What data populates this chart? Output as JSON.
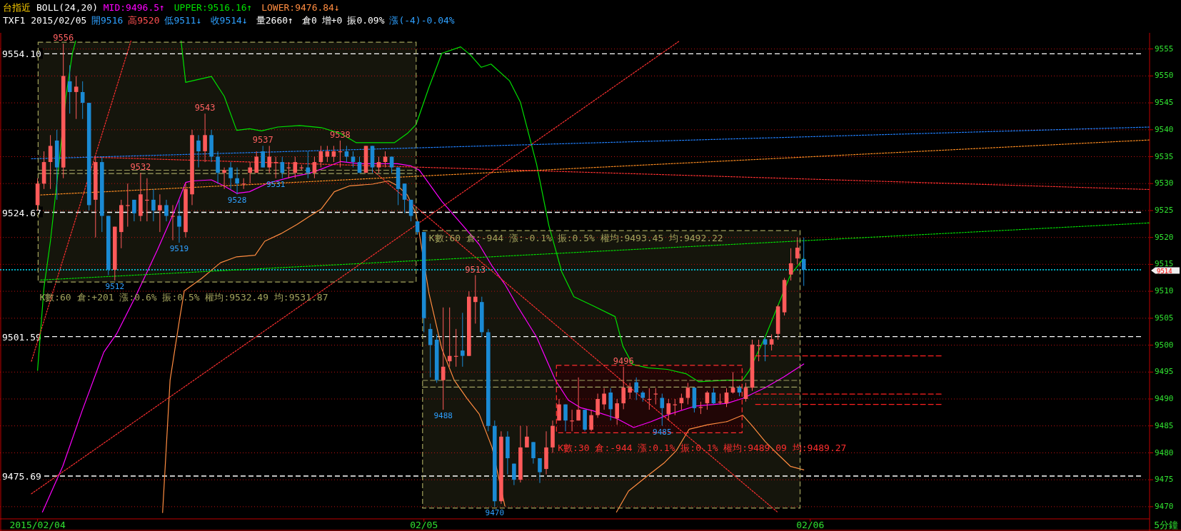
{
  "chart_data": {
    "type": "candlestick",
    "title": "台指近",
    "subtitle": "BOLL(24,20)",
    "xlabel": "5分鐘",
    "x": [
      "2015-02-04T00:00",
      "2015-02-04T00:24",
      "2015-02-04T00:48",
      "2015-02-04T01:12",
      "2015-02-04T01:36",
      "2015-02-04T02:00",
      "2015-02-04T02:24",
      "2015-02-04T02:48",
      "2015-02-04T03:12",
      "2015-02-04T03:36",
      "2015-02-04T04:00",
      "2015-02-04T04:24",
      "2015-02-04T04:48",
      "2015-02-04T05:12",
      "2015-02-04T05:36",
      "2015-02-04T06:00",
      "2015-02-04T06:24",
      "2015-02-04T06:48",
      "2015-02-04T07:12",
      "2015-02-04T07:36",
      "2015-02-04T08:00",
      "2015-02-04T08:24",
      "2015-02-04T08:48",
      "2015-02-04T09:12",
      "2015-02-04T09:36",
      "2015-02-04T10:00",
      "2015-02-04T10:24",
      "2015-02-04T10:48",
      "2015-02-04T11:12",
      "2015-02-04T11:36",
      "2015-02-04T12:00",
      "2015-02-04T12:24",
      "2015-02-04T12:48",
      "2015-02-04T13:12",
      "2015-02-04T13:36",
      "2015-02-04T14:00",
      "2015-02-04T14:24",
      "2015-02-04T14:48",
      "2015-02-04T15:12",
      "2015-02-04T15:36",
      "2015-02-04T16:00",
      "2015-02-04T16:24",
      "2015-02-04T16:48",
      "2015-02-04T17:12",
      "2015-02-04T17:36",
      "2015-02-04T18:00",
      "2015-02-04T18:24",
      "2015-02-04T18:48",
      "2015-02-04T19:12",
      "2015-02-04T19:36",
      "2015-02-04T20:00",
      "2015-02-04T20:24",
      "2015-02-04T20:48",
      "2015-02-04T21:12",
      "2015-02-04T21:36",
      "2015-02-04T22:00",
      "2015-02-04T22:24",
      "2015-02-04T22:48",
      "2015-02-04T23:12",
      "2015-02-04T23:36",
      "2015-02-05T00:00",
      "2015-02-05T00:24",
      "2015-02-05T00:48",
      "2015-02-05T01:12",
      "2015-02-05T01:36",
      "2015-02-05T02:00",
      "2015-02-05T02:24",
      "2015-02-05T02:48",
      "2015-02-05T03:12",
      "2015-02-05T03:36",
      "2015-02-05T04:00",
      "2015-02-05T04:24",
      "2015-02-05T04:48",
      "2015-02-05T05:12",
      "2015-02-05T05:36",
      "2015-02-05T06:00",
      "2015-02-05T06:24",
      "2015-02-05T06:48",
      "2015-02-05T07:12",
      "2015-02-05T07:36",
      "2015-02-05T08:00",
      "2015-02-05T08:24",
      "2015-02-05T08:48",
      "2015-02-05T09:12",
      "2015-02-05T09:36",
      "2015-02-05T10:00",
      "2015-02-05T10:24",
      "2015-02-05T10:48",
      "2015-02-05T11:12",
      "2015-02-05T11:36",
      "2015-02-05T12:00",
      "2015-02-05T12:24",
      "2015-02-05T12:48",
      "2015-02-05T13:12",
      "2015-02-05T13:36",
      "2015-02-05T14:00",
      "2015-02-05T14:24",
      "2015-02-05T14:48",
      "2015-02-05T15:12",
      "2015-02-05T15:36",
      "2015-02-05T16:00",
      "2015-02-05T16:24",
      "2015-02-05T16:48",
      "2015-02-05T17:12",
      "2015-02-05T17:36",
      "2015-02-05T18:00",
      "2015-02-05T18:24",
      "2015-02-05T18:48",
      "2015-02-05T19:12",
      "2015-02-05T19:36",
      "2015-02-05T20:00",
      "2015-02-05T20:24",
      "2015-02-05T20:48",
      "2015-02-05T21:12",
      "2015-02-05T21:36",
      "2015-02-05T22:00",
      "2015-02-05T22:24",
      "2015-02-05T22:48",
      "2015-02-05T23:12",
      "2015-02-05T23:36"
    ],
    "ohlc": [
      [
        9526,
        9531,
        9525,
        9530
      ],
      [
        9530,
        9536,
        9529,
        9534
      ],
      [
        9534,
        9539,
        9529,
        9537
      ],
      [
        9538,
        9540,
        9527,
        9533
      ],
      [
        9533,
        9556,
        9531,
        9550
      ],
      [
        9549,
        9552,
        9543,
        9547
      ],
      [
        9547,
        9550,
        9542,
        9548
      ],
      [
        9547,
        9549,
        9542,
        9545
      ],
      [
        9545,
        9545,
        9525,
        9526
      ],
      [
        9527,
        9535,
        9520,
        9534
      ],
      [
        9534,
        9535,
        9521,
        9524
      ],
      [
        9524,
        9524,
        9513,
        9514
      ],
      [
        9514,
        9522,
        9512,
        9522
      ],
      [
        9521,
        9527,
        9518,
        9526
      ],
      [
        9526,
        9530,
        9522,
        9526
      ],
      [
        9527,
        9527,
        9523,
        9524.5
      ],
      [
        9524,
        9532,
        9523,
        9528
      ],
      [
        9527,
        9531,
        9523,
        9527
      ],
      [
        9527,
        9529,
        9523,
        9525
      ],
      [
        9525,
        9528,
        9521,
        9526
      ],
      [
        9526,
        9527,
        9523,
        9524
      ],
      [
        9524,
        9526,
        9519.5,
        9524
      ],
      [
        9524,
        9527,
        9519,
        9522
      ],
      [
        9521,
        9530,
        9520,
        9529
      ],
      [
        9528,
        9540,
        9526,
        9539
      ],
      [
        9538,
        9539,
        9533,
        9536
      ],
      [
        9536,
        9543,
        9534,
        9539
      ],
      [
        9539,
        9540,
        9534,
        9535
      ],
      [
        9535,
        9536,
        9530,
        9532
      ],
      [
        9532,
        9533,
        9529,
        9532.5
      ],
      [
        9533,
        9534,
        9529,
        9531
      ],
      [
        9531,
        9533,
        9528,
        9530
      ],
      [
        9530,
        9531,
        9529,
        9530
      ],
      [
        9532,
        9534,
        9530,
        9533
      ],
      [
        9532,
        9536,
        9532,
        9535
      ],
      [
        9536,
        9537,
        9533,
        9533
      ],
      [
        9533,
        9537,
        9532,
        9535
      ],
      [
        9534,
        9535,
        9531,
        9534
      ],
      [
        9534,
        9535,
        9531,
        9532
      ],
      [
        9533,
        9534,
        9531,
        9533
      ],
      [
        9532,
        9535,
        9531,
        9534
      ],
      [
        9533,
        9533.5,
        9532.5,
        9533
      ],
      [
        9533,
        9536,
        9531,
        9532
      ],
      [
        9532,
        9535,
        9531,
        9534
      ],
      [
        9534,
        9537,
        9533,
        9536
      ],
      [
        9535,
        9537,
        9534,
        9536
      ],
      [
        9535,
        9537,
        9534,
        9536
      ],
      [
        9536,
        9538,
        9533,
        9536
      ],
      [
        9536,
        9537,
        9534,
        9535
      ],
      [
        9535,
        9536,
        9533,
        9534
      ],
      [
        9534,
        9535,
        9532,
        9532
      ],
      [
        9532,
        9537,
        9532,
        9537
      ],
      [
        9537,
        9537,
        9532,
        9533
      ],
      [
        9533,
        9535,
        9532,
        9534
      ],
      [
        9534,
        9536,
        9533,
        9535
      ],
      [
        9535,
        9535,
        9532,
        9533
      ],
      [
        9533,
        9533,
        9526,
        9529
      ],
      [
        9530,
        9530,
        9524.5,
        9527
      ],
      [
        9527,
        9527,
        9523,
        9524
      ],
      [
        9523,
        9523,
        9520.5,
        9521
      ],
      [
        9521,
        9521,
        9502.4,
        9505
      ],
      [
        9503,
        9504,
        9494,
        9500
      ],
      [
        9501,
        9502,
        9493,
        9493.5
      ],
      [
        9493.5,
        9507,
        9488,
        9496
      ],
      [
        9497,
        9507,
        9496,
        9498
      ],
      [
        9498,
        9503,
        9496,
        9498
      ],
      [
        9499,
        9506,
        9496,
        9498
      ],
      [
        9498,
        9510,
        9498,
        9509
      ],
      [
        9508,
        9513,
        9504,
        9509
      ],
      [
        9508,
        9509,
        9501.5,
        9502.4
      ],
      [
        9502.4,
        9503,
        9484,
        9485
      ],
      [
        9485,
        9486,
        9470,
        9471
      ],
      [
        9471,
        9484,
        9470.5,
        9483
      ],
      [
        9483,
        9484,
        9476,
        9479
      ],
      [
        9478,
        9478,
        9474,
        9475
      ],
      [
        9475,
        9485,
        9474.5,
        9481
      ],
      [
        9481,
        9485,
        9481,
        9483
      ],
      [
        9482,
        9482,
        9478,
        9479
      ],
      [
        9479,
        9479,
        9474.4,
        9476.4
      ],
      [
        9477,
        9484,
        9476,
        9481
      ],
      [
        9481,
        9486,
        9480,
        9485
      ],
      [
        9486,
        9490,
        9486,
        9489
      ],
      [
        9489,
        9489,
        9484,
        9486
      ],
      [
        9486,
        9488,
        9484,
        9486
      ],
      [
        9486,
        9494,
        9486,
        9488
      ],
      [
        9488,
        9488,
        9484,
        9484.3
      ],
      [
        9484.3,
        9488,
        9484,
        9487
      ],
      [
        9487,
        9491,
        9486.5,
        9490
      ],
      [
        9489,
        9492,
        9488,
        9491
      ],
      [
        9491.2,
        9492,
        9486,
        9488.1
      ],
      [
        9486.4,
        9490,
        9485.2,
        9489.2
      ],
      [
        9489.2,
        9496,
        9488.1,
        9492.1
      ],
      [
        9491.2,
        9493,
        9490,
        9492.1
      ],
      [
        9493.1,
        9494,
        9489.8,
        9491.2
      ],
      [
        9491.2,
        9491.5,
        9489.5,
        9490.2
      ],
      [
        9490,
        9492,
        9488,
        9490
      ],
      [
        9491,
        9492,
        9489,
        9491
      ],
      [
        9490.2,
        9491,
        9485,
        9488.3
      ],
      [
        9487.2,
        9490,
        9486,
        9489.2
      ],
      [
        9489,
        9490,
        9487,
        9489
      ],
      [
        9489.2,
        9491,
        9488,
        9490.2
      ],
      [
        9490.2,
        9493,
        9489,
        9492.1
      ],
      [
        9492.1,
        9492.1,
        9487.5,
        9488.3
      ],
      [
        9488.5,
        9489.5,
        9487.2,
        9488.5
      ],
      [
        9489.2,
        9491.5,
        9488,
        9491.2
      ],
      [
        9491.2,
        9492,
        9489,
        9489.2
      ],
      [
        9489.5,
        9491,
        9489,
        9489.5
      ],
      [
        9489.2,
        9492,
        9488.5,
        9491.2
      ],
      [
        9491.2,
        9495,
        9491,
        9492.1
      ],
      [
        9492.1,
        9492.5,
        9490.5,
        9491.2
      ],
      [
        9490,
        9493,
        9489.5,
        9492.1
      ],
      [
        9492.1,
        9501,
        9491.5,
        9500.1
      ],
      [
        9500,
        9501,
        9497,
        9500
      ],
      [
        9501.1,
        9501.5,
        9497,
        9500.1
      ],
      [
        9500.1,
        9502,
        9499,
        9501.1
      ],
      [
        9502.1,
        9507.5,
        9501,
        9507.2
      ],
      [
        9506.1,
        9512.5,
        9505.5,
        9512.1
      ],
      [
        9513.1,
        9518,
        9512,
        9515.2
      ],
      [
        9516.1,
        9520,
        9515,
        9518.1
      ],
      [
        9516,
        9520,
        9511,
        9514
      ]
    ],
    "colors": [
      "#ff5a5a",
      "#ff5a5a",
      "#ff5a5a",
      "#1a8ad4",
      "#ff5a5a",
      "#1a8ad4",
      "#ff5a5a",
      "#1a8ad4",
      "#1a8ad4",
      "#ff5a5a",
      "#1a8ad4",
      "#1a8ad4",
      "#ff5a5a",
      "#ff5a5a",
      "#ff5a5a",
      "#1a8ad4",
      "#ff5a5a",
      "#ff5a5a",
      "#1a8ad4",
      "#ff5a5a",
      "#1a8ad4",
      "#ff5a5a",
      "#1a8ad4",
      "#ff5a5a",
      "#ff5a5a",
      "#1a8ad4",
      "#ff5a5a",
      "#1a8ad4",
      "#1a8ad4",
      "#ff5a5a",
      "#1a8ad4",
      "#1a8ad4",
      "#ff5a5a",
      "#ff5a5a",
      "#ff5a5a",
      "#1a8ad4",
      "#ff5a5a",
      "#ff5a5a",
      "#1a8ad4",
      "#ff5a5a",
      "#ff5a5a",
      "#ff5a5a",
      "#1a8ad4",
      "#ff5a5a",
      "#ff5a5a",
      "#ff5a5a",
      "#ff5a5a",
      "#ff5a5a",
      "#1a8ad4",
      "#1a8ad4",
      "#1a8ad4",
      "#ff5a5a",
      "#1a8ad4",
      "#ff5a5a",
      "#ff5a5a",
      "#1a8ad4",
      "#1a8ad4",
      "#1a8ad4",
      "#1a8ad4",
      "#1a8ad4",
      "#1a8ad4",
      "#1a8ad4",
      "#1a8ad4",
      "#ff5a5a",
      "#ff5a5a",
      "#ff5a5a",
      "#1a8ad4",
      "#ff5a5a",
      "#ff5a5a",
      "#1a8ad4",
      "#1a8ad4",
      "#1a8ad4",
      "#ff5a5a",
      "#1a8ad4",
      "#1a8ad4",
      "#ff5a5a",
      "#ff5a5a",
      "#1a8ad4",
      "#1a8ad4",
      "#ff5a5a",
      "#ff5a5a",
      "#ff5a5a",
      "#1a8ad4",
      "#ff5a5a",
      "#ff5a5a",
      "#1a8ad4",
      "#ff5a5a",
      "#ff5a5a",
      "#ff5a5a",
      "#1a8ad4",
      "#ff5a5a",
      "#ff5a5a",
      "#ff5a5a",
      "#1a8ad4",
      "#1a8ad4",
      "#ff5a5a",
      "#ff5a5a",
      "#1a8ad4",
      "#ff5a5a",
      "#ff5a5a",
      "#ff5a5a",
      "#ff5a5a",
      "#1a8ad4",
      "#ff5a5a",
      "#ff5a5a",
      "#1a8ad4",
      "#ff5a5a",
      "#ff5a5a",
      "#ff5a5a",
      "#1a8ad4",
      "#ff5a5a",
      "#ff5a5a",
      "#ff5a5a",
      "#1a8ad4",
      "#ff5a5a",
      "#ff5a5a",
      "#ff5a5a",
      "#ff5a5a",
      "#ff5a5a",
      "#1a8ad4"
    ],
    "series": [
      {
        "name": "MID:9496.5↑",
        "type": "line",
        "color": "#ff00ff",
        "line_style": "solid",
        "x": [
          "2015-02-04T00:18",
          "2015-02-04T01:34",
          "2015-02-04T02:46",
          "2015-02-04T04:07",
          "2015-02-04T04:55",
          "2015-02-04T06:05",
          "2015-02-04T07:26",
          "2015-02-04T08:26",
          "2015-02-04T09:12",
          "2015-02-04T09:36",
          "2015-02-04T10:48",
          "2015-02-04T11:34",
          "2015-02-04T12:22",
          "2015-02-04T13:10",
          "2015-02-04T14:19",
          "2015-02-04T15:53",
          "2015-02-04T16:53",
          "2015-02-04T17:38",
          "2015-02-04T18:50",
          "2015-02-04T20:00",
          "2015-02-04T20:48",
          "2015-02-04T22:22",
          "2015-02-04T23:10",
          "2015-02-04T23:43",
          "2015-02-05T01:07",
          "2015-02-05T02:17",
          "2015-02-05T03:26",
          "2015-02-05T04:14",
          "2015-02-05T05:02",
          "2015-02-05T05:48",
          "2015-02-05T07:00",
          "2015-02-05T08:10",
          "2015-02-05T08:58",
          "2015-02-05T09:43",
          "2015-02-05T10:31",
          "2015-02-05T11:58",
          "2015-02-05T13:02",
          "2015-02-05T14:07",
          "2015-02-05T15:17",
          "2015-02-05T16:53",
          "2015-02-05T18:50",
          "2015-02-05T19:48",
          "2015-02-05T21:12",
          "2015-02-05T22:22",
          "2015-02-05T23:36"
        ],
        "values": [
          9469,
          9477.5,
          9487.8,
          9498.7,
          9502.1,
          9509,
          9517.6,
          9524.4,
          9530.2,
          9530.5,
          9530.7,
          9529.6,
          9528.2,
          9528.5,
          9530.1,
          9531.3,
          9531.9,
          9532.7,
          9534.1,
          9533.7,
          9533.7,
          9533.7,
          9533.3,
          9532.5,
          9526.7,
          9522.7,
          9518.7,
          9514.7,
          9511.3,
          9507.3,
          9501.5,
          9493.5,
          9489.8,
          9488.4,
          9487.8,
          9486.4,
          9484.7,
          9485.8,
          9487.2,
          9488.7,
          9489.2,
          9490.1,
          9492.1,
          9494.1,
          9496.5
        ]
      },
      {
        "name": "UPPER:9516.16↑",
        "type": "line",
        "color": "#00e000",
        "line_style": "solid",
        "x": [
          "2015-02-04T00:00",
          "2015-02-04T00:24",
          "2015-02-04T00:48",
          "2015-02-04T01:22",
          "2015-02-04T01:46",
          "2015-02-04T02:10",
          "2015-02-04T02:22",
          null,
          "2015-02-04T08:55",
          "2015-02-04T09:12",
          "2015-02-04T10:48",
          "2015-02-04T11:36",
          "2015-02-04T12:22",
          "2015-02-04T13:10",
          "2015-02-04T13:55",
          "2015-02-04T14:55",
          "2015-02-04T16:17",
          "2015-02-04T17:38",
          "2015-02-04T18:50",
          "2015-02-04T19:48",
          "2015-02-04T20:48",
          "2015-02-04T22:10",
          "2015-02-04T22:58",
          "2015-02-04T23:31",
          "2015-02-05T00:19",
          "2015-02-05T01:07",
          "2015-02-05T02:17",
          "2015-02-05T02:53",
          "2015-02-05T03:34",
          "2015-02-05T04:10",
          "2015-02-05T05:19",
          "2015-02-05T06:00",
          "2015-02-05T07:00",
          "2015-02-05T07:46",
          "2015-02-05T08:34",
          "2015-02-05T09:19",
          "2015-02-05T10:31",
          "2015-02-05T11:53",
          "2015-02-05T12:22",
          "2015-02-05T12:58",
          "2015-02-05T13:55",
          "2015-02-05T15:07",
          "2015-02-05T16:17",
          "2015-02-05T17:05",
          "2015-02-05T18:50",
          "2015-02-05T19:48",
          "2015-02-05T20:12",
          "2015-02-05T21:12",
          "2015-02-05T22:46",
          "2015-02-05T23:36"
        ],
        "values": [
          9495.3,
          9510.7,
          9519.3,
          9534.7,
          9546.2,
          9554.2,
          9556.5,
          null,
          9556.5,
          9548.8,
          9549.9,
          9546.2,
          9539.9,
          9540.2,
          9539.8,
          9540.5,
          9540.8,
          9540.4,
          9539.3,
          9537.6,
          9537.6,
          9537.6,
          9539.3,
          9541,
          9547.9,
          9554.2,
          9555.4,
          9553.9,
          9551.6,
          9552.2,
          9549.1,
          9545.1,
          9533.6,
          9522.2,
          9513.6,
          9509,
          9507.3,
          9505.3,
          9499.8,
          9496.4,
          9495.8,
          9495.5,
          9494.7,
          9493.2,
          9493.5,
          9493.5,
          9495.2,
          9501.5,
          9513,
          9516.16
        ]
      },
      {
        "name": "LOWER:9476.84↓",
        "type": "line",
        "color": "#ff8c40",
        "line_style": "solid",
        "x": [
          "2015-02-04T07:46",
          "2015-02-04T08:14",
          "2015-02-04T08:50",
          "2015-02-04T09:07",
          "2015-02-04T10:12",
          "2015-02-04T11:22",
          "2015-02-04T12:22",
          "2015-02-04T13:31",
          "2015-02-04T14:07",
          "2015-02-04T15:07",
          "2015-02-04T16:07",
          "2015-02-04T16:53",
          "2015-02-04T17:38",
          "2015-02-04T18:26",
          "2015-02-04T19:24",
          "2015-02-04T20:48",
          "2015-02-04T21:48",
          "2015-02-04T22:22",
          "2015-02-04T22:58",
          "2015-02-04T23:31",
          "2015-02-05T00:19",
          "2015-02-05T01:07",
          "2015-02-05T01:53",
          "2015-02-05T02:41",
          "2015-02-05T03:26",
          "2015-02-05T04:14",
          "2015-02-05T05:02",
          null,
          "2015-02-05T11:58",
          "2015-02-05T12:43",
          "2015-02-05T13:55",
          "2015-02-05T14:55",
          "2015-02-05T15:41",
          "2015-02-05T16:29",
          "2015-02-05T17:38",
          "2015-02-05T18:50",
          "2015-02-05T19:48",
          "2015-02-05T20:24",
          "2015-02-05T21:12",
          "2015-02-05T21:58",
          "2015-02-05T22:46",
          "2015-02-05T23:36"
        ],
        "values": [
          9468.9,
          9493.5,
          9505,
          9510.1,
          9512.4,
          9515.3,
          9516.4,
          9516.7,
          9519.3,
          9520.7,
          9522.4,
          9523.9,
          9525.3,
          9528.5,
          9529.6,
          9529.9,
          9530.5,
          9529.6,
          9527.9,
          9524.4,
          9509.6,
          9499.3,
          9493.5,
          9490.1,
          9487.2,
          9481,
          9470.1,
          null,
          9469,
          9472.9,
          9475.8,
          9478.1,
          9480.4,
          9484.4,
          9485.2,
          9485.8,
          9487,
          9485,
          9482.1,
          9479.8,
          9477.5,
          9476.84
        ]
      },
      {
        "type": "line",
        "color": "#ff3030",
        "line_style": "dotted",
        "x": [
          "2015-02-03T23:37",
          "2015-02-05T15:53"
        ],
        "values": [
          9472.4,
          9556.5
        ]
      },
      {
        "type": "line",
        "color": "#ff3030",
        "line_style": "dotted",
        "x": [
          "2015-02-03T23:37",
          "2015-02-04T05:48"
        ],
        "values": [
          9497,
          9556.5
        ]
      },
      {
        "type": "line",
        "color": "#ff3030",
        "line_style": "dotted",
        "x": [
          "2015-02-04T20:48",
          "2015-02-05T21:58"
        ],
        "values": [
          9532.5,
          9469
        ]
      },
      {
        "type": "line",
        "color": "#2080ff",
        "line_style": "dotted",
        "x": [
          "2015-02-03T23:37",
          "2015-02-06T21:05"
        ],
        "values": [
          9534.6,
          9540.5
        ]
      },
      {
        "type": "line",
        "color": "#ff8c20",
        "line_style": "dotted",
        "x": [
          "2015-02-04T00:12",
          "2015-02-06T21:05"
        ],
        "values": [
          9527.9,
          9538.1
        ]
      },
      {
        "type": "line",
        "color": "#ff3030",
        "line_style": "dotted",
        "x": [
          "2015-02-04T03:31",
          "2015-02-06T21:05"
        ],
        "values": [
          9534.9,
          9528.9
        ]
      },
      {
        "type": "line",
        "color": "#00e000",
        "line_style": "dotted",
        "x": [
          "2015-02-04T00:12",
          "2015-02-06T21:05"
        ],
        "values": [
          9512.1,
          9522.7
        ]
      },
      {
        "type": "line",
        "color": "#ff2020",
        "line_style": "dashed",
        "x": [
          "2015-02-05T20:36",
          "2015-02-06T08:14"
        ],
        "values": [
          9498,
          9498
        ]
      },
      {
        "type": "line",
        "color": "#ff2020",
        "line_style": "dashed",
        "x": [
          "2015-02-05T20:36",
          "2015-02-06T08:14"
        ],
        "values": [
          9490.9,
          9490.9
        ]
      },
      {
        "type": "line",
        "color": "#ff2020",
        "line_style": "dashed",
        "x": [
          "2015-02-05T20:36",
          "2015-02-06T08:14"
        ],
        "values": [
          9489,
          9489
        ]
      },
      {
        "type": "line",
        "color": "#a0a060",
        "line_style": "dashed",
        "x": [
          "2015-02-04T00:02",
          "2015-02-04T23:31"
        ],
        "values": [
          9532.49,
          9532.49
        ]
      },
      {
        "type": "line",
        "color": "#a0a060",
        "line_style": "dashed",
        "x": [
          "2015-02-04T00:02",
          "2015-02-04T23:31"
        ],
        "values": [
          9531.87,
          9531.87
        ]
      },
      {
        "type": "line",
        "color": "#a0a060",
        "line_style": "dashed",
        "x": [
          "2015-02-04T23:55",
          "2015-02-05T23:22"
        ],
        "values": [
          9493.45,
          9493.45
        ]
      },
      {
        "type": "line",
        "color": "#a0a060",
        "line_style": "dashed",
        "x": [
          "2015-02-04T23:55",
          "2015-02-05T23:22"
        ],
        "values": [
          9492.22,
          9492.22
        ]
      }
    ],
    "xlim": [
      "2015-02-03T21:40",
      "2015-02-06T21:05"
    ],
    "ylim": [
      9468,
      9558
    ],
    "xticks": [
      {
        "value": "2015-02-04",
        "label": "2015/02/04"
      },
      {
        "value": "2015-02-05",
        "label": "02/05"
      },
      {
        "value": "2015-02-06",
        "label": "02/06"
      }
    ],
    "yticks": [
      9470,
      9475,
      9480,
      9485,
      9490,
      9495,
      9500,
      9505,
      9510,
      9515,
      9520,
      9525,
      9530,
      9535,
      9540,
      9545,
      9550,
      9555
    ],
    "grid": "y",
    "legend": "top left",
    "bands": [
      {
        "axis": "x",
        "from": "2015-02-04T00:02",
        "to": "2015-02-04T23:31",
        "label": "K數:60 倉:+201 漲:0.6% 振:0.5% 權均:9532.49 均:9531.87",
        "color": "#15150c"
      },
      {
        "axis": "x",
        "from": "2015-02-04T23:55",
        "to": "2015-02-05T23:22",
        "label": "K數:60 倉:-944 漲:-0.1% 振:0.5% 權均:9493.45 均:9492.22",
        "color": "#15150c"
      },
      {
        "axis": "x",
        "from": "2015-02-05T08:14",
        "to": "2015-02-05T19:46",
        "label": "K數:30 倉:-944 漲:0.1% 振:0.1% 權均:9489.09 均:9489.27",
        "color": "#210606"
      }
    ],
    "ref_lines": [
      {
        "axis": "y",
        "value": 9554.1,
        "label": "9554.10",
        "color": "#ffffff",
        "line_style": "dashed"
      },
      {
        "axis": "y",
        "value": 9524.67,
        "label": "9524.67",
        "color": "#ffffff",
        "line_style": "dashed"
      },
      {
        "axis": "y",
        "value": 9501.59,
        "label": "9501.59",
        "color": "#ffffff",
        "line_style": "dashed"
      },
      {
        "axis": "y",
        "value": 9475.69,
        "label": "9475.69",
        "color": "#ffffff",
        "line_style": "dashed"
      },
      {
        "axis": "y",
        "value": 9514,
        "label": "9514",
        "color": "#00e5ff",
        "line_style": "dotted"
      }
    ],
    "annotations": [
      "TXF1 2015/02/05",
      "開9516",
      "高9520",
      "低9511↓",
      "收9514↓",
      "量2660↑",
      "倉0",
      "增+0",
      "振0.09%",
      "漲(-4)-0.04%",
      {
        "text": "9556",
        "x": "2015-02-04T01:36",
        "y": 9556
      },
      {
        "text": "9543",
        "x": "2015-02-04T10:24",
        "y": 9543
      },
      {
        "text": "9532",
        "x": "2015-02-04T06:24",
        "y": 9532
      },
      {
        "text": "9537",
        "x": "2015-02-04T14:00",
        "y": 9537
      },
      {
        "text": "9538",
        "x": "2015-02-04T18:48",
        "y": 9538
      },
      {
        "text": "9531",
        "x": "2015-02-04T14:48",
        "y": 9531
      },
      {
        "text": "9528",
        "x": "2015-02-04T12:24",
        "y": 9528
      },
      {
        "text": "9519",
        "x": "2015-02-04T08:48",
        "y": 9519
      },
      {
        "text": "9512",
        "x": "2015-02-04T04:48",
        "y": 9512
      },
      {
        "text": "9513",
        "x": "2015-02-05T03:12",
        "y": 9513
      },
      {
        "text": "9488",
        "x": "2015-02-05T01:12",
        "y": 9488
      },
      {
        "text": "9470",
        "x": "2015-02-05T04:24",
        "y": 9470
      },
      {
        "text": "9496",
        "x": "2015-02-05T12:24",
        "y": 9496
      },
      {
        "text": "9485",
        "x": "2015-02-05T14:48",
        "y": 9485
      }
    ]
  }
}
